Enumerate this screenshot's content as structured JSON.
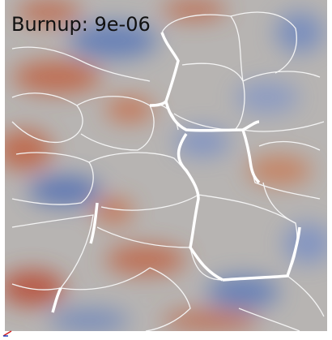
{
  "overlay": {
    "label": "Burnup: 9e-06"
  }
}
